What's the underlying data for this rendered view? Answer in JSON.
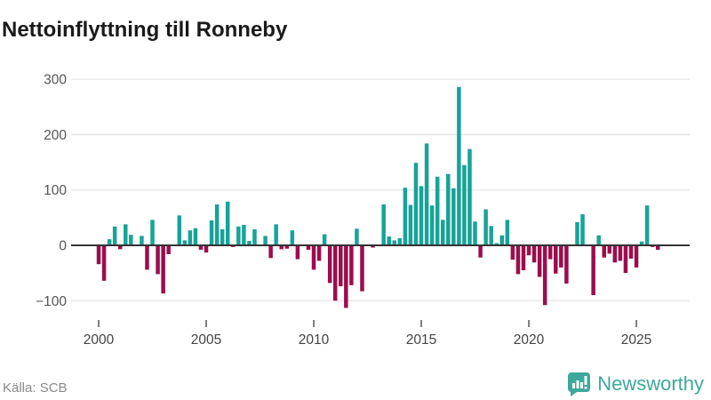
{
  "header": {
    "title": "Nettoinflyttning till Ronneby"
  },
  "footer": {
    "source": "Källa: SCB",
    "brand": "Newsworthy"
  },
  "colors": {
    "positive_bar": "#17a398",
    "negative_bar": "#9c0d4c",
    "gridline": "#e4e4e4",
    "zero_line": "#333333",
    "axis_text": "#555555",
    "brand_teal": "#3da89b"
  },
  "chart_data": {
    "type": "bar",
    "title": "Nettoinflyttning till Ronneby",
    "xlabel": "",
    "ylabel": "",
    "frequency": "quarterly",
    "start_year": 2000,
    "start_quarter": 1,
    "ylim": [
      -130,
      310
    ],
    "grid": "horizontal",
    "y_ticks": [
      -100,
      0,
      100,
      200,
      300
    ],
    "y_tick_labels": [
      "−100",
      "0",
      "100",
      "200",
      "300"
    ],
    "x_ticks": [
      2000,
      2005,
      2010,
      2015,
      2020,
      2025
    ],
    "values": [
      -34,
      -64,
      11,
      34,
      -7,
      38,
      19,
      0,
      17,
      -44,
      46,
      -52,
      -87,
      -16,
      0,
      54,
      9,
      27,
      31,
      -8,
      -13,
      45,
      74,
      29,
      79,
      -3,
      34,
      37,
      8,
      29,
      0,
      17,
      -23,
      38,
      -7,
      -6,
      27,
      -25,
      0,
      -8,
      -44,
      -28,
      20,
      -68,
      -100,
      -74,
      -113,
      -72,
      30,
      -83,
      0,
      -4,
      0,
      74,
      16,
      9,
      13,
      104,
      73,
      149,
      107,
      184,
      72,
      124,
      46,
      129,
      103,
      286,
      145,
      174,
      43,
      -22,
      65,
      35,
      4,
      18,
      46,
      -26,
      -52,
      -45,
      -18,
      -31,
      -57,
      -108,
      -25,
      -51,
      -40,
      -69,
      0,
      42,
      56,
      0,
      -90,
      18,
      -22,
      -15,
      -31,
      -28,
      -50,
      -24,
      -40,
      7,
      72,
      -3,
      -8
    ]
  }
}
